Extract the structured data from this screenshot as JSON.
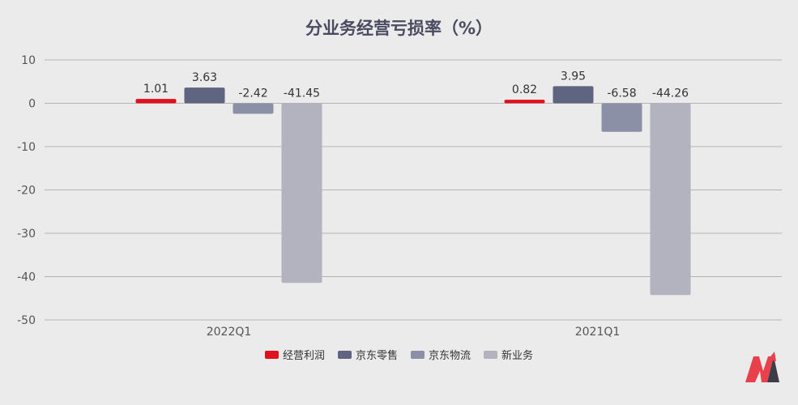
{
  "chart_data": {
    "type": "bar",
    "title": "分业务经营亏损率（%）",
    "categories": [
      "2022Q1",
      "2021Q1"
    ],
    "series": [
      {
        "name": "经营利润",
        "color": "#e0101f",
        "values": [
          1.01,
          0.82
        ]
      },
      {
        "name": "京东零售",
        "color": "#5f6480",
        "values": [
          3.63,
          3.95
        ]
      },
      {
        "name": "京东物流",
        "color": "#8c90a6",
        "values": [
          -2.42,
          -6.58
        ]
      },
      {
        "name": "新业务",
        "color": "#b2b3be",
        "values": [
          -41.45,
          -44.26
        ]
      }
    ],
    "data_labels": [
      [
        "1.01",
        "3.63",
        "-2.42",
        "-41.45"
      ],
      [
        "0.82",
        "3.95",
        "-6.58",
        "-44.26"
      ]
    ],
    "ylim": [
      -50,
      10
    ],
    "yticks": [
      10,
      0,
      -10,
      -20,
      -30,
      -40,
      -50
    ],
    "grid": true,
    "legend_position": "bottom",
    "xlabel": "",
    "ylabel": ""
  },
  "logo": {
    "icon": "brand-logo-icon",
    "colors": [
      "#e8414b",
      "#3d3d4a"
    ]
  }
}
